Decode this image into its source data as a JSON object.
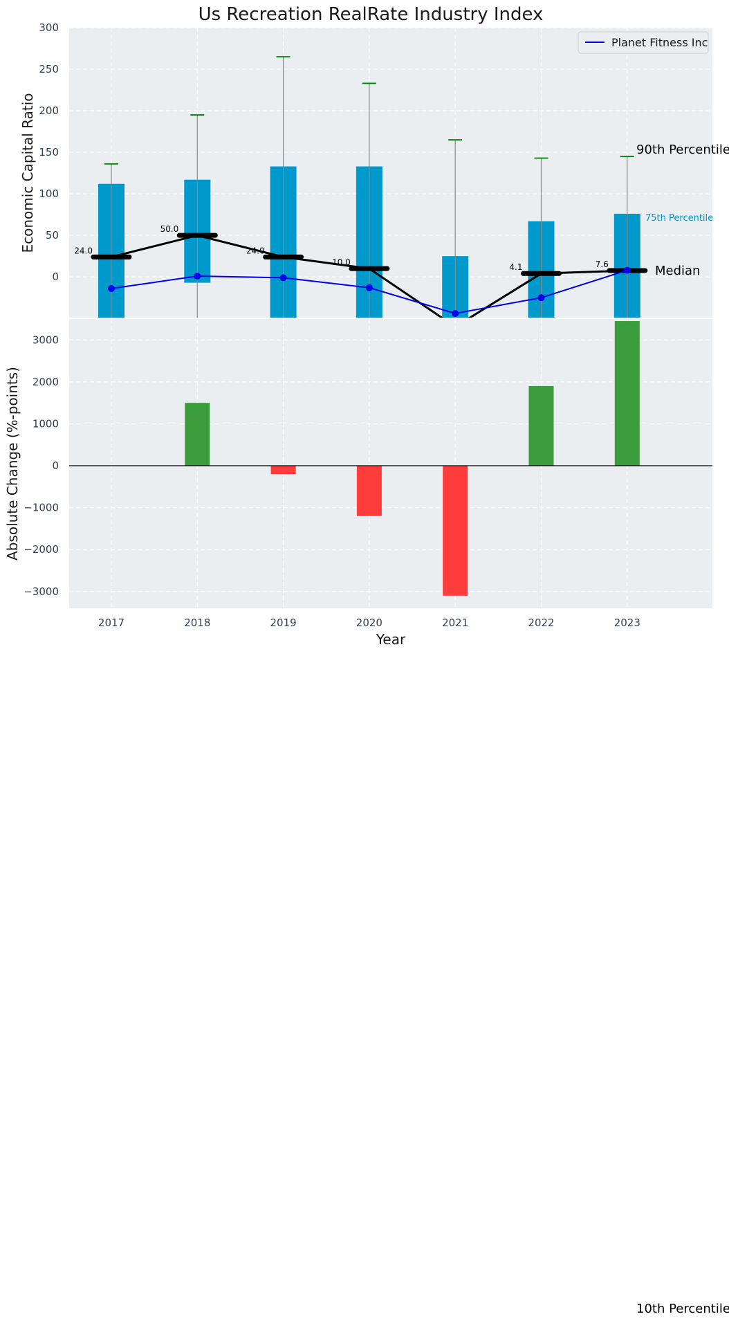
{
  "chart_data": [
    {
      "type": "bar",
      "title": "Us Recreation RealRate Industry Index",
      "xlabel": "",
      "ylabel": "Economic Capital Ratio",
      "ylim": [
        -49,
        300
      ],
      "yticks": [
        0,
        50,
        100,
        150,
        200,
        250,
        300
      ],
      "categories": [
        "2017",
        "2018",
        "2019",
        "2020",
        "2021",
        "2022",
        "2023"
      ],
      "percentile_bars": {
        "label": "75th Percentile",
        "bottom": [
          -49,
          -7,
          -49,
          -49,
          -49,
          -49,
          -49
        ],
        "top": [
          112,
          117,
          133,
          133,
          25,
          67,
          76
        ]
      },
      "whiskers": {
        "label": "90th Percentile",
        "low": [
          -49,
          -49,
          -49,
          -49,
          -49,
          -49,
          -49
        ],
        "high": [
          136,
          195,
          265,
          233,
          165,
          143,
          145
        ]
      },
      "median": {
        "label": "Median",
        "values": [
          24.0,
          50.0,
          24.0,
          10.0,
          -60.0,
          4.1,
          7.6
        ],
        "value_labels": [
          "24.0",
          "50.0",
          "24.0",
          "10.0",
          "",
          "4.1",
          "7.6"
        ]
      },
      "series": [
        {
          "name": "Planet Fitness Inc",
          "values": [
            -14,
            1,
            -1,
            -13,
            -44,
            -25,
            8
          ]
        }
      ],
      "annotations": [
        "90th Percentile",
        "75th Percentile",
        "Median",
        "10th Percentile"
      ],
      "legend": "top-right",
      "grid": true
    },
    {
      "type": "bar",
      "xlabel": "Year",
      "ylabel": "Absolute Change (%-points)",
      "ylim": [
        -3400,
        3500
      ],
      "yticks": [
        -3000,
        -2000,
        -1000,
        0,
        1000,
        2000,
        3000
      ],
      "ytick_labels": [
        "−3000",
        "−2000",
        "−1000",
        "0",
        "1000",
        "2000",
        "3000"
      ],
      "categories": [
        "2017",
        "2018",
        "2019",
        "2020",
        "2021",
        "2022",
        "2023"
      ],
      "values": [
        0,
        1500,
        -200,
        -1200,
        -3100,
        1900,
        3450
      ],
      "grid": true
    }
  ],
  "colors": {
    "axes_bg": "#eaeef0",
    "bar": "#0099cc",
    "whisker": "#888888",
    "cap": "#008000",
    "median": "#000000",
    "series": "#0000ee",
    "positive": "#3a9c3a",
    "negative": "#ff3c3c",
    "text": "#1a1a1a",
    "tick": "#2e3f55",
    "percentile_label": "#0099cc"
  }
}
